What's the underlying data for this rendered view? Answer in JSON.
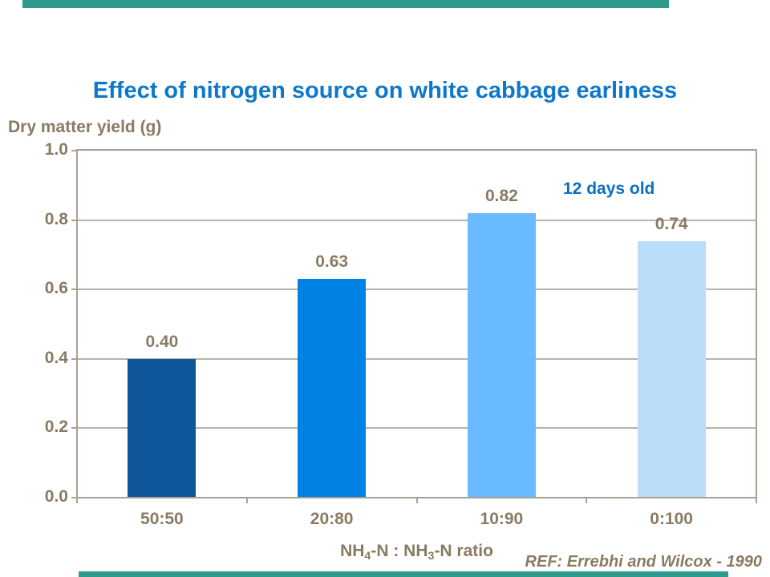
{
  "slide": {
    "title": "Effect of nitrogen source on white cabbage earliness",
    "reference": "REF: Errebhi and Wilcox - 1990"
  },
  "colors": {
    "accent_teal": "#2E9B8D",
    "title_blue": "#0D78CB",
    "annotation_blue": "#0B6FC4",
    "axis_text_brown": "#8A7A63",
    "axis_line": "#A8A094",
    "gridline": "#BBB2A6"
  },
  "chart_data": {
    "type": "bar",
    "title": "Effect of nitrogen source on white cabbage earliness",
    "ylabel": "Dry matter yield (g)",
    "xlabel": "NH4-N : NH3-N ratio",
    "xlabel_parts": [
      {
        "text": "NH",
        "sub": false
      },
      {
        "text": "4",
        "sub": true
      },
      {
        "text": "-N : NH",
        "sub": false
      },
      {
        "text": "3",
        "sub": true
      },
      {
        "text": "-N ratio",
        "sub": false
      }
    ],
    "categories": [
      "50:50",
      "20:80",
      "10:90",
      "0:100"
    ],
    "values": [
      0.4,
      0.63,
      0.82,
      0.74
    ],
    "value_labels": [
      "0.40",
      "0.63",
      "0.82",
      "0.74"
    ],
    "bar_colors": [
      "#0E579B",
      "#0082E4",
      "#69BAFF",
      "#BADDFA"
    ],
    "ylim": [
      0.0,
      1.0
    ],
    "yticks": [
      0.0,
      0.2,
      0.4,
      0.6,
      0.8,
      1.0
    ],
    "ytick_labels": [
      "0.0",
      "0.2",
      "0.4",
      "0.6",
      "0.8",
      "1.0"
    ],
    "grid": true,
    "legend": null,
    "annotation": "12 days old"
  }
}
